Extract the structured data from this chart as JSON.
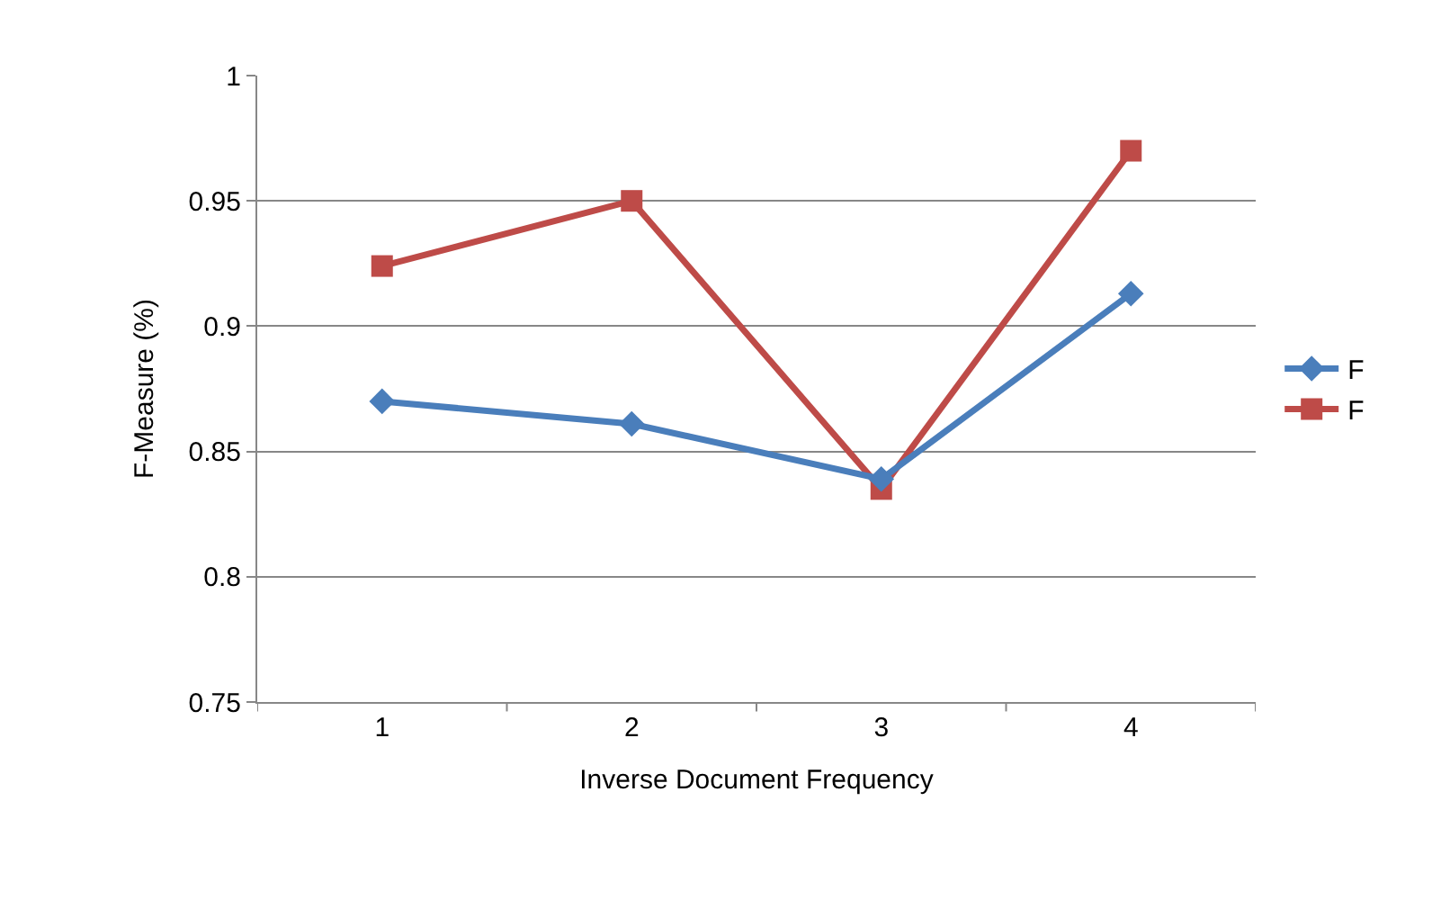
{
  "chart_data": {
    "type": "line",
    "xlabel": "Inverse Document Frequency",
    "ylabel": "F-Measure (%)",
    "categories": [
      "1",
      "2",
      "3",
      "4"
    ],
    "series": [
      {
        "name": "F",
        "color": "#4a7ebb",
        "marker": "diamond",
        "values": [
          0.87,
          0.861,
          0.839,
          0.913
        ]
      },
      {
        "name": "F",
        "color": "#be4b48",
        "marker": "square",
        "values": [
          0.924,
          0.95,
          0.835,
          0.97
        ]
      }
    ],
    "ylim": [
      0.75,
      1
    ],
    "yticks": [
      0.75,
      0.8,
      0.85,
      0.9,
      0.95,
      1
    ],
    "grid": "y",
    "legend": "right",
    "line_style": "solid"
  }
}
